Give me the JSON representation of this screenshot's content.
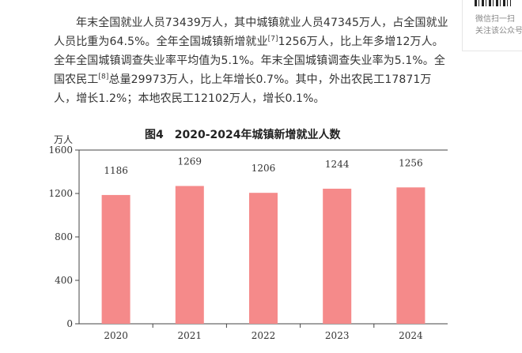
{
  "article": {
    "p1_a": "年末全国就业人员73439万人，其中城镇就业人员47345万人，占全国就业人员比重为64.5%。全年全国城镇新增就业",
    "fn7": "[7]",
    "p1_b": "1256万人，比上年多增12万人。全年全国城镇调查失业率平均值为5.1%。年末全国城镇调查失业率为5.1%。全国农民工",
    "fn8": "[8]",
    "p1_c": "总量29973万人，比上年增长0.7%。其中，外出农民工17871万人，增长1.2%；本地农民工12102万人，增长0.1%。"
  },
  "qr_panel": {
    "line1": "微信扫一扫",
    "line2": "关注该公众号"
  },
  "chart_data": {
    "type": "bar",
    "title": "图4　2020-2024年城镇新增就业人数",
    "ylabel": "万人",
    "xlabel": "",
    "categories": [
      "2020",
      "2021",
      "2022",
      "2023",
      "2024"
    ],
    "values": [
      1186,
      1269,
      1206,
      1244,
      1256
    ],
    "ylim": [
      0,
      1600
    ],
    "yticks": [
      "0",
      "400",
      "800",
      "1200",
      "1600"
    ],
    "bar_color": "#f58a8a",
    "grid": false,
    "legend": "none"
  }
}
